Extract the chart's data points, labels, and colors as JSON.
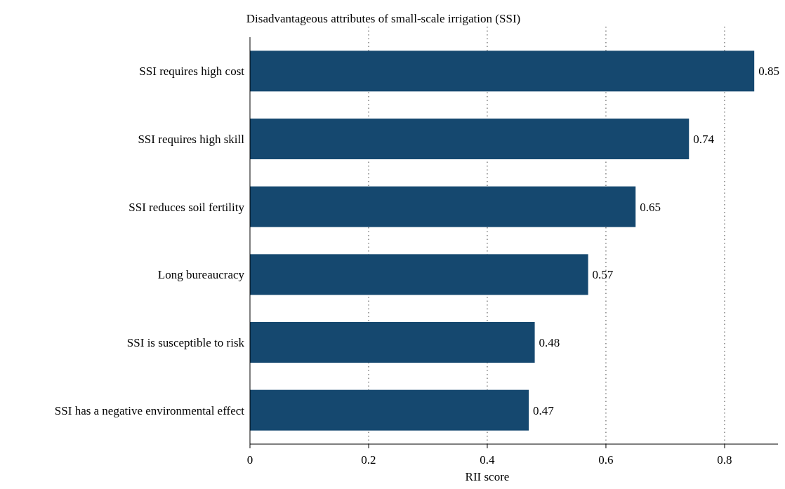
{
  "chart_data": {
    "type": "bar",
    "orientation": "horizontal",
    "title": "Disadvantageous attributes of small-scale irrigation (SSI)",
    "xlabel": "RII score",
    "categories": [
      "SSI requires high cost",
      "SSI requires high skill",
      "SSI reduces soil fertility",
      "Long bureaucracy",
      "SSI is susceptible to risk",
      "SSI has a negative environmental effect"
    ],
    "values": [
      0.85,
      0.74,
      0.65,
      0.57,
      0.48,
      0.47
    ],
    "color": "#15486f",
    "xlim": [
      0,
      0.89
    ],
    "xticks": [
      0,
      0.2,
      0.4,
      0.6,
      0.8
    ],
    "grid": "x",
    "data_labels": true
  }
}
